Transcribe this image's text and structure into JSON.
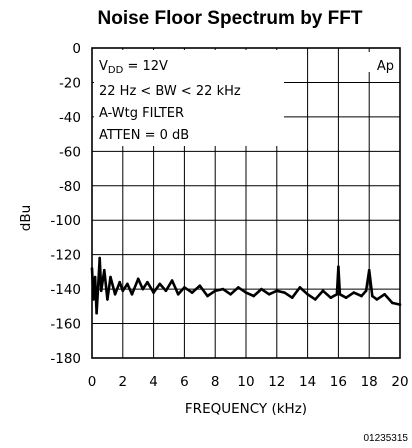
{
  "chart_data": {
    "type": "line",
    "title": "Noise Floor Spectrum by FFT",
    "xlabel": "FREQUENCY (kHz)",
    "ylabel": "dBu",
    "xlim": [
      0,
      20
    ],
    "ylim": [
      -180,
      0
    ],
    "x_ticks": [
      "0",
      "2",
      "4",
      "6",
      "8",
      "10",
      "12",
      "14",
      "16",
      "18",
      "20"
    ],
    "y_ticks": [
      "0",
      "-20",
      "-40",
      "-60",
      "-80",
      "-100",
      "-120",
      "-140",
      "-160",
      "-180"
    ],
    "grid": true,
    "annotations": {
      "vdd_prefix": "V",
      "vdd_sub": "DD",
      "vdd_value": " = 12V",
      "bandwidth": "22 Hz < BW < 22 kHz",
      "filter": "A-Wtg FILTER",
      "atten": "ATTEN = 0 dB",
      "ap_mark": "Ap"
    },
    "figure_id": "01235315",
    "series": [
      {
        "x": [
          0.0,
          0.1,
          0.2,
          0.3,
          0.4,
          0.5,
          0.6,
          0.8,
          1.0,
          1.2,
          1.5,
          1.8,
          2.0,
          2.3,
          2.6,
          3.0,
          3.3,
          3.6,
          4.0,
          4.4,
          4.8,
          5.2,
          5.6,
          6.0,
          6.5,
          7.0,
          7.5,
          8.0,
          8.5,
          9.0,
          9.5,
          10.0,
          10.5,
          11.0,
          11.5,
          12.0,
          12.5,
          13.0,
          13.5,
          14.0,
          14.5,
          15.0,
          15.5,
          15.9,
          16.0,
          16.1,
          16.5,
          17.0,
          17.5,
          17.8,
          18.0,
          18.2,
          18.5,
          19.0,
          19.5,
          20.0
        ],
        "y": [
          -128,
          -146,
          -133,
          -154,
          -138,
          -122,
          -141,
          -129,
          -146,
          -133,
          -143,
          -136,
          -141,
          -137,
          -143,
          -134,
          -140,
          -136,
          -142,
          -137,
          -141,
          -135,
          -143,
          -139,
          -142,
          -138,
          -144,
          -141,
          -140,
          -143,
          -139,
          -142,
          -144,
          -140,
          -143,
          -141,
          -142,
          -145,
          -139,
          -143,
          -146,
          -141,
          -145,
          -143,
          -127,
          -143,
          -145,
          -142,
          -144,
          -141,
          -129,
          -144,
          -146,
          -143,
          -148,
          -149
        ]
      }
    ]
  }
}
